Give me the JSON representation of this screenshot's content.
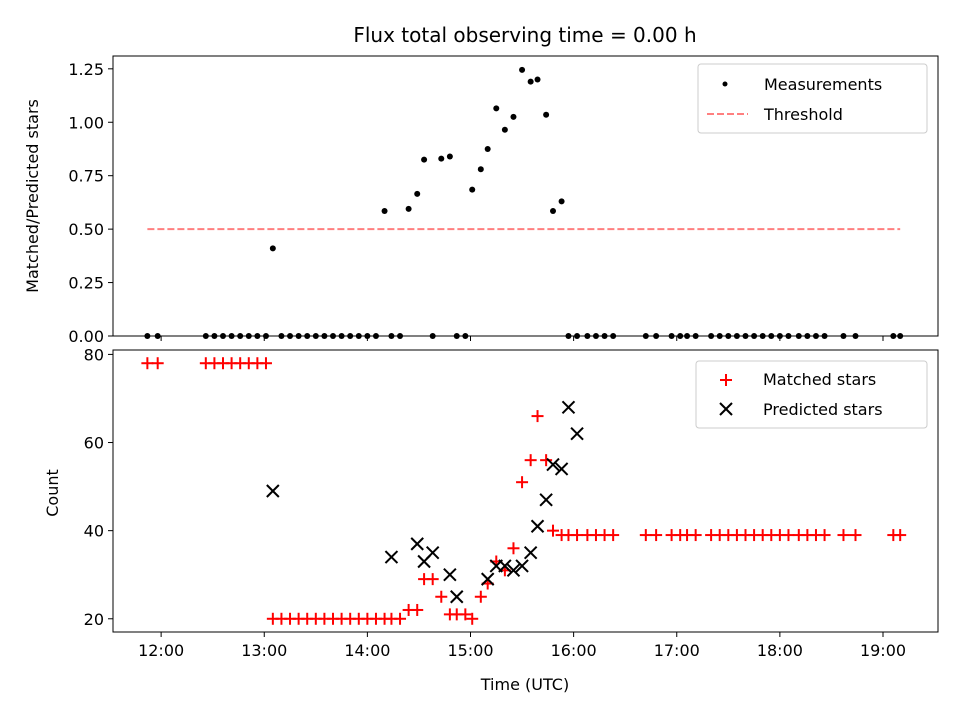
{
  "figure": {
    "title": "Flux total observing time = 0.00 h"
  },
  "chart_data": [
    {
      "type": "scatter",
      "title": "Flux total observing time = 0.00 h",
      "xlabel": "",
      "ylabel": "Matched/Predicted stars",
      "xlim": [
        "11:32",
        "19:32"
      ],
      "ylim": [
        0,
        1.31
      ],
      "yticks": [
        0.0,
        0.25,
        0.5,
        0.75,
        1.0,
        1.25
      ],
      "ytick_labels": [
        "0.00",
        "0.25",
        "0.50",
        "0.75",
        "1.00",
        "1.25"
      ],
      "grid": false,
      "legend_position": "upper right",
      "series": [
        {
          "name": "Measurements",
          "kind": "points",
          "color": "#000000",
          "x": [
            "11:52",
            "11:58",
            "12:26",
            "12:31",
            "12:36",
            "12:41",
            "12:46",
            "12:51",
            "12:56",
            "13:01",
            "13:05",
            "13:10",
            "13:15",
            "13:20",
            "13:25",
            "13:30",
            "13:35",
            "13:40",
            "13:45",
            "13:50",
            "13:55",
            "14:00",
            "14:05",
            "14:10",
            "14:14",
            "14:19",
            "14:24",
            "14:29",
            "14:33",
            "14:38",
            "14:43",
            "14:48",
            "14:52",
            "14:57",
            "15:01",
            "15:06",
            "15:10",
            "15:15",
            "15:20",
            "15:25",
            "15:30",
            "15:35",
            "15:39",
            "15:44",
            "15:48",
            "15:53",
            "15:57",
            "16:02",
            "16:08",
            "16:13",
            "16:18",
            "16:23",
            "16:42",
            "16:48",
            "16:57",
            "17:02",
            "17:06",
            "17:11",
            "17:20",
            "17:25",
            "17:30",
            "17:35",
            "17:40",
            "17:45",
            "17:50",
            "17:55",
            "18:00",
            "18:05",
            "18:11",
            "18:16",
            "18:21",
            "18:26",
            "18:37",
            "18:44",
            "19:06",
            "19:10"
          ],
          "y": [
            0,
            0,
            0,
            0,
            0,
            0,
            0,
            0,
            0,
            0,
            0.41,
            0,
            0,
            0,
            0,
            0,
            0,
            0,
            0,
            0,
            0,
            0,
            0,
            0.585,
            0,
            0,
            0.595,
            0.665,
            0.825,
            0,
            0.83,
            0.84,
            0,
            0,
            0.685,
            0.78,
            0.875,
            1.065,
            0.965,
            1.025,
            1.245,
            1.19,
            1.2,
            1.035,
            0.585,
            0.63,
            0,
            0,
            0,
            0,
            0,
            0,
            0,
            0,
            0,
            0,
            0,
            0,
            0,
            0,
            0,
            0,
            0,
            0,
            0,
            0,
            0,
            0,
            0,
            0,
            0,
            0,
            0,
            0,
            0,
            0
          ]
        },
        {
          "name": "Threshold",
          "kind": "dashed-line",
          "color": "#ff7f7f",
          "x": [
            "11:52",
            "19:10"
          ],
          "y": [
            0.5,
            0.5
          ]
        }
      ]
    },
    {
      "type": "scatter",
      "xlabel": "Time (UTC)",
      "ylabel": "Count",
      "xlim": [
        "11:32",
        "19:32"
      ],
      "xticks": [
        "12:00",
        "13:00",
        "14:00",
        "15:00",
        "16:00",
        "17:00",
        "18:00",
        "19:00"
      ],
      "ylim": [
        17,
        81
      ],
      "yticks": [
        20,
        40,
        60,
        80
      ],
      "ytick_labels": [
        "20",
        "40",
        "60",
        "80"
      ],
      "grid": false,
      "legend_position": "upper right",
      "series": [
        {
          "name": "Matched stars",
          "marker": "plus",
          "color": "#ff0000",
          "x": [
            "11:52",
            "11:58",
            "12:26",
            "12:31",
            "12:36",
            "12:41",
            "12:46",
            "12:51",
            "12:56",
            "13:01",
            "13:05",
            "13:10",
            "13:15",
            "13:20",
            "13:25",
            "13:30",
            "13:35",
            "13:40",
            "13:45",
            "13:50",
            "13:55",
            "14:00",
            "14:05",
            "14:10",
            "14:14",
            "14:19",
            "14:24",
            "14:29",
            "14:33",
            "14:38",
            "14:43",
            "14:48",
            "14:52",
            "14:57",
            "15:01",
            "15:06",
            "15:10",
            "15:15",
            "15:20",
            "15:25",
            "15:30",
            "15:35",
            "15:39",
            "15:44",
            "15:48",
            "15:53",
            "15:57",
            "16:02",
            "16:08",
            "16:13",
            "16:18",
            "16:23",
            "16:42",
            "16:48",
            "16:57",
            "17:02",
            "17:06",
            "17:11",
            "17:20",
            "17:25",
            "17:30",
            "17:35",
            "17:40",
            "17:45",
            "17:50",
            "17:55",
            "18:00",
            "18:05",
            "18:11",
            "18:16",
            "18:21",
            "18:26",
            "18:37",
            "18:44",
            "19:06",
            "19:10"
          ],
          "y": [
            78,
            78,
            78,
            78,
            78,
            78,
            78,
            78,
            78,
            78,
            20,
            20,
            20,
            20,
            20,
            20,
            20,
            20,
            20,
            20,
            20,
            20,
            20,
            20,
            20,
            20,
            22,
            22,
            29,
            29,
            25,
            21,
            21,
            21,
            20,
            25,
            28,
            33,
            31,
            36,
            51,
            56,
            66,
            56,
            40,
            39,
            39,
            39,
            39,
            39,
            39,
            39,
            39,
            39,
            39,
            39,
            39,
            39,
            39,
            39,
            39,
            39,
            39,
            39,
            39,
            39,
            39,
            39,
            39,
            39,
            39,
            39,
            39,
            39,
            39,
            39
          ]
        },
        {
          "name": "Predicted stars",
          "marker": "x",
          "color": "#000000",
          "x": [
            "13:05",
            "14:14",
            "14:29",
            "14:33",
            "14:38",
            "14:48",
            "14:52",
            "15:10",
            "15:15",
            "15:20",
            "15:25",
            "15:30",
            "15:35",
            "15:39",
            "15:44",
            "15:48",
            "15:53",
            "15:57",
            "16:02"
          ],
          "y": [
            49,
            34,
            37,
            33,
            35,
            30,
            25,
            29,
            32,
            32,
            31,
            32,
            35,
            41,
            47,
            55,
            54,
            68,
            62
          ]
        }
      ]
    }
  ]
}
